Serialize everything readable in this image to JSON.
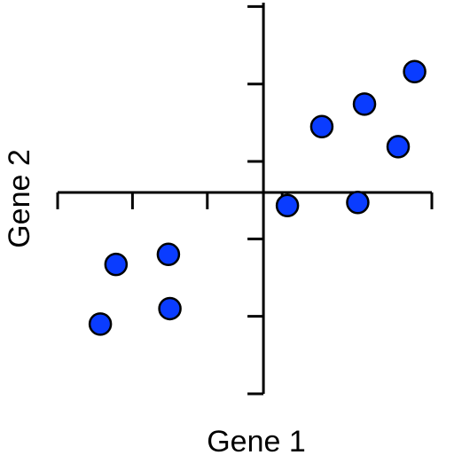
{
  "chart_data": {
    "type": "scatter",
    "xlabel": "Gene 1",
    "ylabel": "Gene 2",
    "xlim": [
      -2.75,
      2.25
    ],
    "ylim": [
      -2.6,
      2.45
    ],
    "x_ticks": [
      -2.75,
      -1.75,
      -0.75,
      0.25,
      1.25,
      2.25
    ],
    "y_ticks": [
      -2.6,
      -1.6,
      -0.6,
      0.4,
      1.4,
      2.4
    ],
    "grid": false,
    "legend": "none",
    "marker_color": "#0a3cff",
    "points": [
      {
        "x": -2.18,
        "y": -1.7
      },
      {
        "x": -1.97,
        "y": -0.93
      },
      {
        "x": -1.27,
        "y": -0.8
      },
      {
        "x": -1.25,
        "y": -1.5
      },
      {
        "x": 0.32,
        "y": -0.17
      },
      {
        "x": 1.26,
        "y": -0.13
      },
      {
        "x": 0.78,
        "y": 0.85
      },
      {
        "x": 1.35,
        "y": 1.14
      },
      {
        "x": 1.8,
        "y": 0.59
      },
      {
        "x": 2.02,
        "y": 1.56
      }
    ]
  }
}
